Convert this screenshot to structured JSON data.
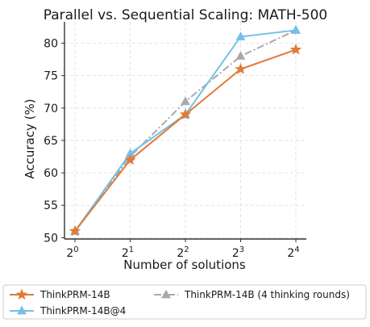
{
  "chart_data": {
    "type": "line",
    "title": "Parallel vs. Sequential Scaling: MATH-500",
    "xlabel": "Number of solutions",
    "ylabel": "Accuracy (%)",
    "x": [
      1,
      2,
      4,
      8,
      16
    ],
    "x_scale": "log2",
    "x_tick_labels": [
      {
        "base": "2",
        "exp": "0"
      },
      {
        "base": "2",
        "exp": "1"
      },
      {
        "base": "2",
        "exp": "2"
      },
      {
        "base": "2",
        "exp": "3"
      },
      {
        "base": "2",
        "exp": "4"
      }
    ],
    "ylim": [
      49.8,
      83.3
    ],
    "y_ticks": [
      50,
      55,
      60,
      65,
      70,
      75,
      80
    ],
    "grid": true,
    "legend_placement": "bottom",
    "series": [
      {
        "name": "ThinkPRM-14B",
        "values": [
          51,
          62,
          69,
          76,
          79
        ],
        "color": "#e07b39",
        "marker": "star",
        "line_style": "solid"
      },
      {
        "name": "ThinkPRM-14B@4",
        "values": [
          51,
          63,
          69,
          81,
          82
        ],
        "color": "#74c0ea",
        "marker": "triangle",
        "line_style": "solid"
      },
      {
        "name": "ThinkPRM-14B (4 thinking rounds)",
        "values": [
          51,
          62.5,
          71,
          78,
          82
        ],
        "color": "#a9a9a9",
        "marker": "triangle",
        "line_style": "dashdot"
      }
    ]
  }
}
